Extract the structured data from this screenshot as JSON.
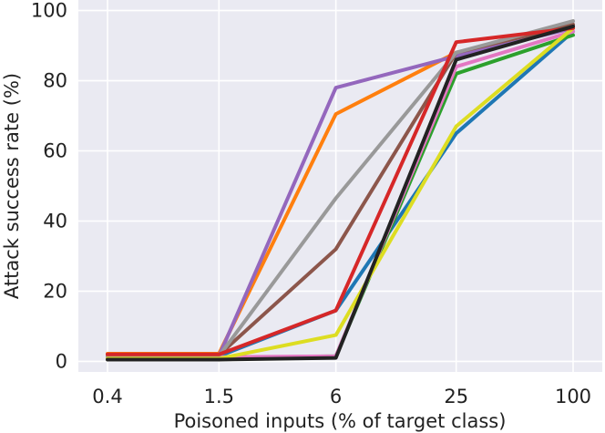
{
  "chart_data": {
    "type": "line",
    "title": "",
    "xlabel": "Poisoned inputs (% of target class)",
    "ylabel": "Attack success rate (%)",
    "x_tick_labels": [
      "0.4",
      "1.5",
      "6",
      "25",
      "100"
    ],
    "y_tick_labels": [
      "0",
      "20",
      "40",
      "60",
      "80",
      "100"
    ],
    "x": [
      0.4,
      1.5,
      6,
      25,
      100
    ],
    "x_scale": "log",
    "ylim": [
      -3,
      103
    ],
    "grid": true,
    "background": "#eaeaf2",
    "series": [
      {
        "color": "#1f77b4",
        "values": [
          1.5,
          1.5,
          14.5,
          65,
          94
        ]
      },
      {
        "color": "#ff7f0e",
        "values": [
          2.2,
          2.2,
          70.5,
          88,
          95
        ]
      },
      {
        "color": "#2ca02c",
        "values": [
          1.0,
          1.0,
          1.5,
          82,
          93
        ]
      },
      {
        "color": "#9467bd",
        "values": [
          1.5,
          1.5,
          78,
          87,
          95
        ]
      },
      {
        "color": "#8c564b",
        "values": [
          1.8,
          1.8,
          32,
          88,
          96
        ]
      },
      {
        "color": "#e377c2",
        "values": [
          1.2,
          1.2,
          1.5,
          84,
          94
        ]
      },
      {
        "color": "#999999",
        "values": [
          1.5,
          1.5,
          46.5,
          88,
          97
        ]
      },
      {
        "color": "#dddd22",
        "values": [
          0.8,
          0.8,
          7.5,
          67,
          95
        ]
      },
      {
        "color": "#d62728",
        "values": [
          2.0,
          2.0,
          14.5,
          91,
          95
        ]
      },
      {
        "color": "#222222",
        "values": [
          0.5,
          0.5,
          1.0,
          86,
          95.5
        ]
      }
    ]
  }
}
